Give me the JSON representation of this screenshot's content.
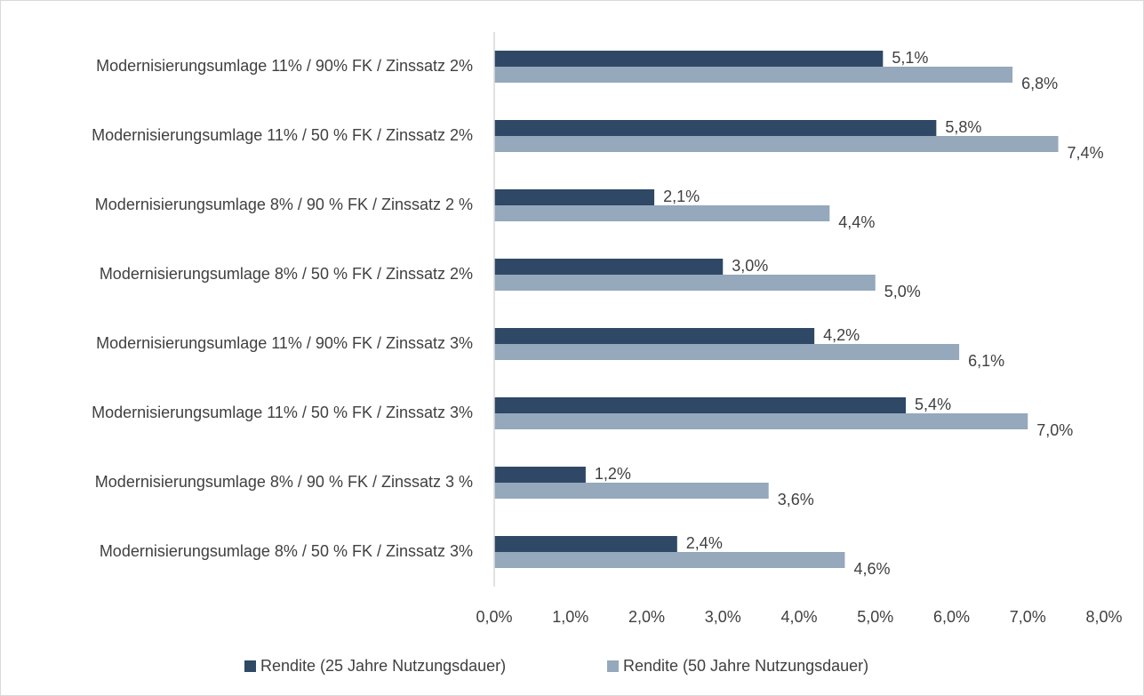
{
  "chart_data": {
    "type": "hbar",
    "categories": [
      "Modernisierungsumlage 11% / 90% FK / Zinssatz 2%",
      "Modernisierungsumlage 11% / 50 % FK / Zinssatz 2%",
      "Modernisierungsumlage 8% / 90 % FK / Zinssatz 2 %",
      "Modernisierungsumlage 8% / 50 % FK / Zinssatz 2%",
      "Modernisierungsumlage 11% / 90% FK / Zinssatz 3%",
      "Modernisierungsumlage 11% / 50 % FK / Zinssatz 3%",
      "Modernisierungsumlage 8% / 90 % FK / Zinssatz 3 %",
      "Modernisierungsumlage 8% / 50 % FK / Zinssatz 3%"
    ],
    "series": [
      {
        "name": "Rendite (25 Jahre Nutzungsdauer)",
        "color": "#2e4866",
        "values": [
          5.1,
          5.8,
          2.1,
          3.0,
          4.2,
          5.4,
          1.2,
          2.4
        ],
        "value_labels": [
          "5,1%",
          "5,8%",
          "2,1%",
          "3,0%",
          "4,2%",
          "5,4%",
          "1,2%",
          "2,4%"
        ]
      },
      {
        "name": "Rendite (50 Jahre Nutzungsdauer)",
        "color": "#95a8bc",
        "values": [
          6.8,
          7.4,
          4.4,
          5.0,
          6.1,
          7.0,
          3.6,
          4.6
        ],
        "value_labels": [
          "6,8%",
          "7,4%",
          "4,4%",
          "5,0%",
          "6,1%",
          "7,0%",
          "3,6%",
          "4,6%"
        ]
      }
    ],
    "xlim": [
      0,
      8
    ],
    "xticks": [
      {
        "value": 0,
        "label": "0,0%"
      },
      {
        "value": 1,
        "label": "1,0%"
      },
      {
        "value": 2,
        "label": "2,0%"
      },
      {
        "value": 3,
        "label": "3,0%"
      },
      {
        "value": 4,
        "label": "4,0%"
      },
      {
        "value": 5,
        "label": "5,0%"
      },
      {
        "value": 6,
        "label": "6,0%"
      },
      {
        "value": 7,
        "label": "7,0%"
      },
      {
        "value": 8,
        "label": "8,0%"
      }
    ],
    "grid": false,
    "legend": "bottom"
  }
}
